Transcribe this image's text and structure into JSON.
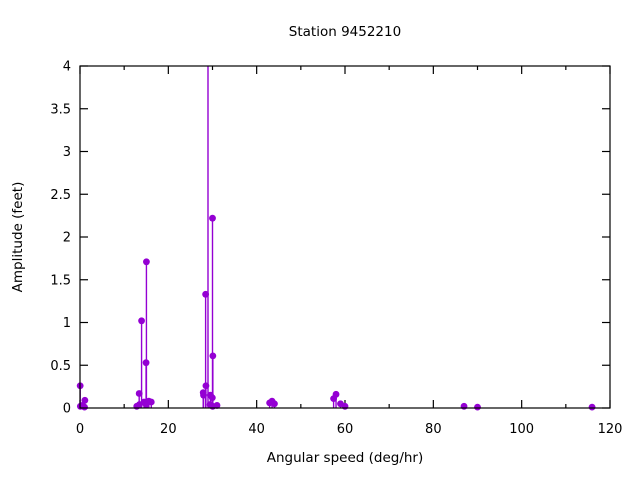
{
  "title": "Station 9452210",
  "chart_data": {
    "type": "stem",
    "title": "Station 9452210",
    "xlabel": "Angular speed (deg/hr)",
    "ylabel": "Amplitude (feet)",
    "xlim": [
      0,
      120
    ],
    "ylim": [
      0,
      4
    ],
    "xticks_major": [
      0,
      20,
      40,
      60,
      80,
      100,
      120
    ],
    "xticks_minor": [
      10,
      30,
      50,
      70,
      90,
      110
    ],
    "yticks": [
      0,
      0.5,
      1,
      1.5,
      2,
      2.5,
      3,
      3.5,
      4
    ],
    "ytick_labels": [
      "0",
      "0.5",
      "1",
      "1.5",
      "2",
      "2.5",
      "3",
      "3.5",
      "4"
    ],
    "grid": false,
    "legend": "none",
    "marker_color": "#9400d3",
    "axis_color": "#000000",
    "background_color": "#ffffff",
    "points": [
      {
        "x": 0.04,
        "y": 0.26
      },
      {
        "x": 0.08,
        "y": 0.02
      },
      {
        "x": 0.54,
        "y": 0.03
      },
      {
        "x": 1.02,
        "y": 0.01
      },
      {
        "x": 1.1,
        "y": 0.09
      },
      {
        "x": 12.85,
        "y": 0.02
      },
      {
        "x": 13.4,
        "y": 0.17
      },
      {
        "x": 13.47,
        "y": 0.04
      },
      {
        "x": 13.94,
        "y": 1.02
      },
      {
        "x": 14.5,
        "y": 0.07
      },
      {
        "x": 14.96,
        "y": 0.53
      },
      {
        "x": 15.0,
        "y": 0.04
      },
      {
        "x": 15.04,
        "y": 1.71
      },
      {
        "x": 15.59,
        "y": 0.08
      },
      {
        "x": 16.14,
        "y": 0.07
      },
      {
        "x": 27.9,
        "y": 0.18
      },
      {
        "x": 27.97,
        "y": 0.15
      },
      {
        "x": 28.44,
        "y": 1.33
      },
      {
        "x": 28.51,
        "y": 0.26
      },
      {
        "x": 28.98,
        "y": 4.0,
        "offscale": true
      },
      {
        "x": 29.46,
        "y": 0.04
      },
      {
        "x": 29.53,
        "y": 0.15
      },
      {
        "x": 29.96,
        "y": 0.12
      },
      {
        "x": 30.0,
        "y": 2.22
      },
      {
        "x": 30.04,
        "y": 0.02
      },
      {
        "x": 30.08,
        "y": 0.61
      },
      {
        "x": 31.02,
        "y": 0.03
      },
      {
        "x": 42.93,
        "y": 0.06
      },
      {
        "x": 43.48,
        "y": 0.08
      },
      {
        "x": 44.03,
        "y": 0.05
      },
      {
        "x": 57.42,
        "y": 0.11
      },
      {
        "x": 57.97,
        "y": 0.16
      },
      {
        "x": 58.98,
        "y": 0.05
      },
      {
        "x": 60.0,
        "y": 0.02
      },
      {
        "x": 86.95,
        "y": 0.02
      },
      {
        "x": 90.0,
        "y": 0.01
      },
      {
        "x": 115.94,
        "y": 0.01
      }
    ]
  }
}
